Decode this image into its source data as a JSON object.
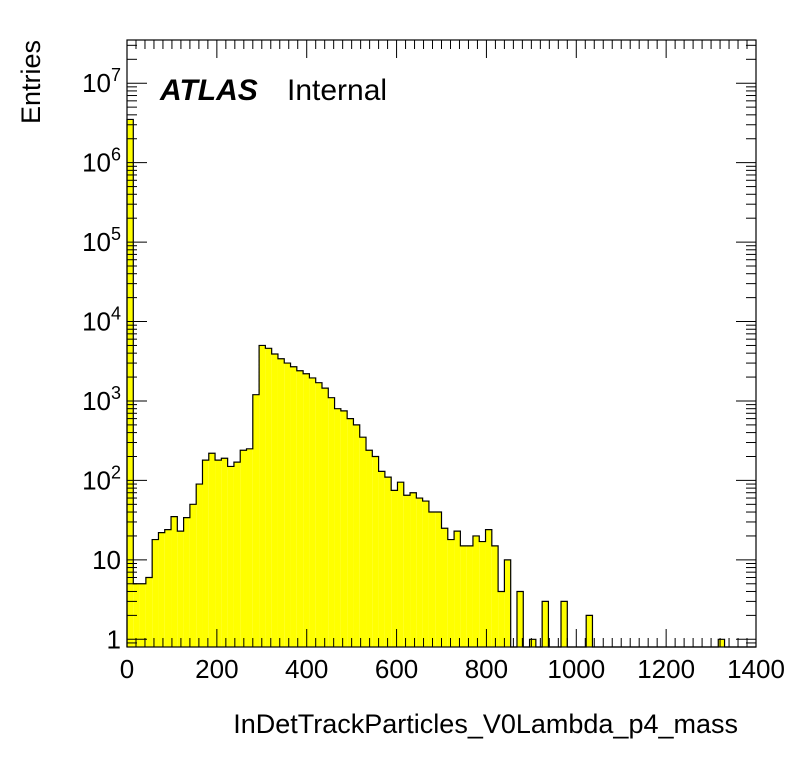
{
  "chart_data": {
    "type": "bar",
    "style": "histogram",
    "fill_color": "#ffff00",
    "line_color": "#000000",
    "xlabel": "InDetTrackParticles_V0Lambda_p4_mass",
    "ylabel": "Entries",
    "xlim": [
      0,
      1400
    ],
    "ylim": [
      0.8,
      35000000
    ],
    "y_scale": "log",
    "grid": false,
    "x_ticks": [
      "0",
      "200",
      "400",
      "600",
      "800",
      "1000",
      "1200",
      "1400"
    ],
    "y_ticks": [
      {
        "base": "1",
        "exp": ""
      },
      {
        "base": "10",
        "exp": ""
      },
      {
        "base": "10",
        "exp": "2"
      },
      {
        "base": "10",
        "exp": "3"
      },
      {
        "base": "10",
        "exp": "4"
      },
      {
        "base": "10",
        "exp": "5"
      },
      {
        "base": "10",
        "exp": "6"
      },
      {
        "base": "10",
        "exp": "7"
      }
    ],
    "bin_width": 14,
    "bin_start": 0,
    "values": [
      3500000,
      5,
      5,
      6,
      18,
      22,
      24,
      35,
      23,
      34,
      50,
      90,
      180,
      220,
      180,
      190,
      150,
      170,
      240,
      250,
      1200,
      5000,
      4600,
      3900,
      3400,
      3000,
      2700,
      2400,
      2200,
      1950,
      1700,
      1450,
      1100,
      800,
      750,
      600,
      500,
      350,
      240,
      200,
      130,
      110,
      75,
      95,
      65,
      70,
      60,
      55,
      40,
      40,
      25,
      18,
      23,
      15,
      15,
      20,
      17,
      24,
      15,
      4,
      10,
      0,
      4,
      0,
      1,
      0,
      3,
      0,
      0,
      3,
      0,
      0,
      0,
      2,
      0,
      0,
      0,
      0,
      0,
      0,
      0,
      0,
      0,
      0,
      0,
      0,
      0,
      0,
      0,
      0,
      0,
      0,
      0,
      0,
      1,
      0,
      0,
      0,
      0,
      0
    ]
  },
  "annotation": {
    "atlas": "ATLAS",
    "status": "Internal"
  }
}
